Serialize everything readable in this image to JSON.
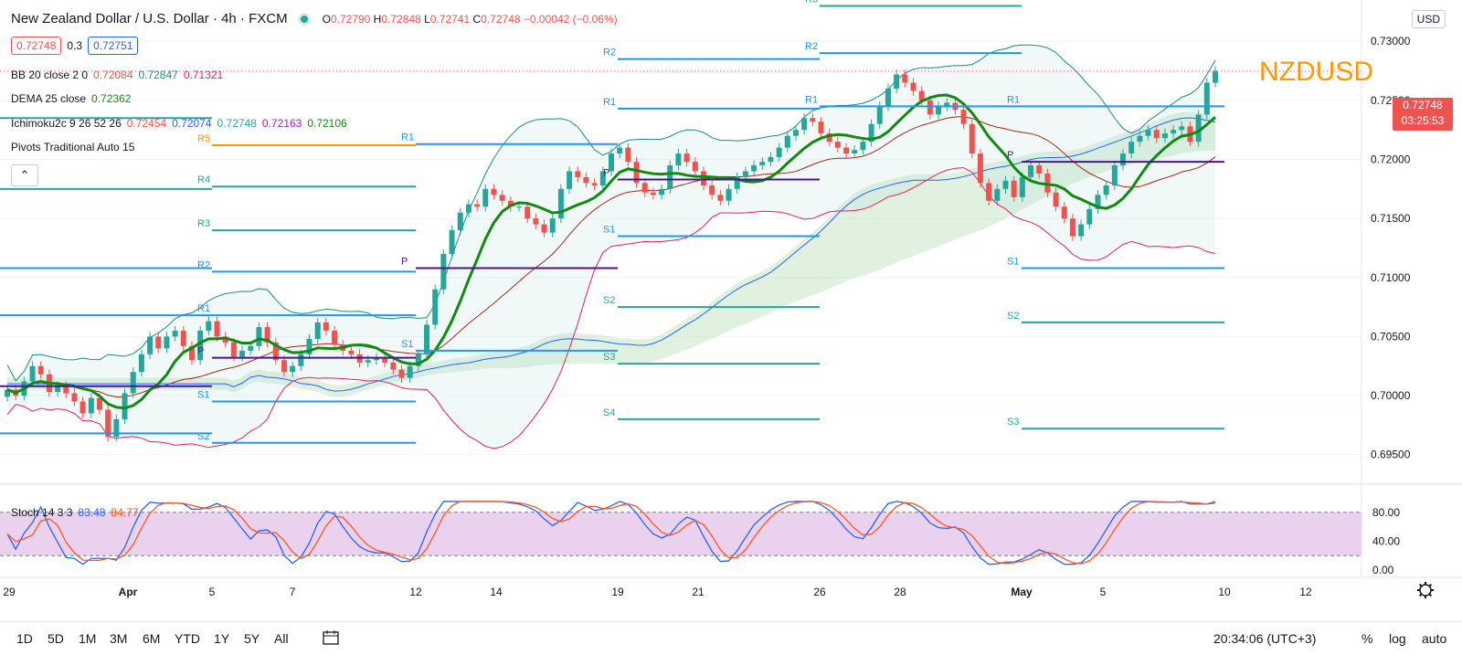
{
  "header": {
    "symbol": "New Zealand Dollar / U.S. Dollar · 4h · FXCM",
    "o_label": "O",
    "o": "0.72790",
    "h_label": "H",
    "h": "0.72848",
    "l_label": "L",
    "l": "0.72741",
    "c_label": "C",
    "c": "0.72748",
    "change": "−0.00042 (−0.06%)",
    "bid": "0.72748",
    "spread": "0.3",
    "ask": "0.72751"
  },
  "indicators": {
    "bb": {
      "label": "BB 20 close 2 0",
      "v1": "0.72084",
      "v2": "0.72847",
      "v3": "0.71321"
    },
    "dema": {
      "label": "DEMA 25 close",
      "v1": "0.72362"
    },
    "ichimoku": {
      "label": "Ichimoku2c 9 26 52 26",
      "v1": "0.72454",
      "v2": "0.72074",
      "v3": "0.72748",
      "v4": "0.72163",
      "v5": "0.72106"
    },
    "pivots": {
      "label": "Pivots Traditional Auto 15"
    },
    "stoch": {
      "label": "Stoch 14 3 3",
      "k": "83.48",
      "d": "84.77"
    }
  },
  "collapse_icon": "chevron-up-icon",
  "currency_badge": "USD",
  "watermark": "NZDUSD",
  "price_tag": {
    "price": "0.72748",
    "countdown": "03:25:53"
  },
  "colors": {
    "up": "#26a69a",
    "down": "#ef5350",
    "dema": "#118a11",
    "bb": "#1e8c7e",
    "cloud_up": "#e8f5e9",
    "pivot_blue": "#2196f3",
    "pivot_teal": "#26a69a",
    "pivot_purple": "#4a148c",
    "stoch_k": "#2962ff",
    "stoch_d": "#ff5722",
    "stoch_band": "#e1bee7",
    "watermark": "#ff9800"
  },
  "chart_data": {
    "type": "candlestick",
    "y_ticks": [
      "0.73000",
      "0.72500",
      "0.72000",
      "0.71500",
      "0.71000",
      "0.70500",
      "0.70000",
      "0.69500"
    ],
    "ylim": [
      0.6925,
      0.7335
    ],
    "x_ticks": [
      "29",
      "Apr",
      "5",
      "7",
      "12",
      "14",
      "19",
      "21",
      "26",
      "28",
      "May",
      "5",
      "10",
      "12"
    ],
    "stoch_ticks": [
      "80.00",
      "40.00",
      "0.00"
    ],
    "stoch_bands": [
      20,
      80
    ],
    "closes": [
      0.7005,
      0.7,
      0.7012,
      0.7025,
      0.7018,
      0.7003,
      0.7008,
      0.7002,
      0.6995,
      0.6985,
      0.6998,
      0.6988,
      0.6965,
      0.698,
      0.7002,
      0.702,
      0.7035,
      0.705,
      0.704,
      0.705,
      0.7055,
      0.7042,
      0.703,
      0.7055,
      0.7063,
      0.705,
      0.7045,
      0.7033,
      0.7038,
      0.7042,
      0.7058,
      0.7045,
      0.703,
      0.702,
      0.7025,
      0.7035,
      0.7048,
      0.7062,
      0.7055,
      0.7043,
      0.7038,
      0.7035,
      0.7028,
      0.703,
      0.7032,
      0.7028,
      0.7022,
      0.7015,
      0.7025,
      0.7035,
      0.706,
      0.709,
      0.712,
      0.714,
      0.7155,
      0.7162,
      0.716,
      0.7175,
      0.717,
      0.7165,
      0.716,
      0.716,
      0.715,
      0.7145,
      0.7138,
      0.715,
      0.7175,
      0.719,
      0.7185,
      0.718,
      0.7178,
      0.719,
      0.7205,
      0.721,
      0.7198,
      0.718,
      0.7172,
      0.717,
      0.7175,
      0.7195,
      0.7205,
      0.7198,
      0.719,
      0.7178,
      0.717,
      0.7165,
      0.7175,
      0.7185,
      0.719,
      0.7195,
      0.7198,
      0.7202,
      0.721,
      0.722,
      0.7225,
      0.7235,
      0.7232,
      0.7222,
      0.7215,
      0.721,
      0.7205,
      0.7208,
      0.7215,
      0.723,
      0.7245,
      0.726,
      0.7272,
      0.7265,
      0.7258,
      0.725,
      0.7238,
      0.7245,
      0.7248,
      0.7242,
      0.723,
      0.7205,
      0.718,
      0.7165,
      0.7175,
      0.7182,
      0.7168,
      0.7185,
      0.7195,
      0.7188,
      0.7172,
      0.716,
      0.715,
      0.7135,
      0.7145,
      0.7158,
      0.717,
      0.7178,
      0.7195,
      0.7205,
      0.7215,
      0.722,
      0.7225,
      0.7218,
      0.7222,
      0.7225,
      0.7228,
      0.7215,
      0.7238,
      0.7265,
      0.7275
    ]
  },
  "bottom": {
    "timeframes": [
      "1D",
      "5D",
      "1M",
      "3M",
      "6M",
      "YTD",
      "1Y",
      "5Y",
      "All"
    ],
    "calendar_icon": "calendar-range-icon",
    "clock": "20:34:06 (UTC+3)",
    "pct": "%",
    "log": "log",
    "auto": "auto",
    "settings_icon": "gear-icon"
  }
}
